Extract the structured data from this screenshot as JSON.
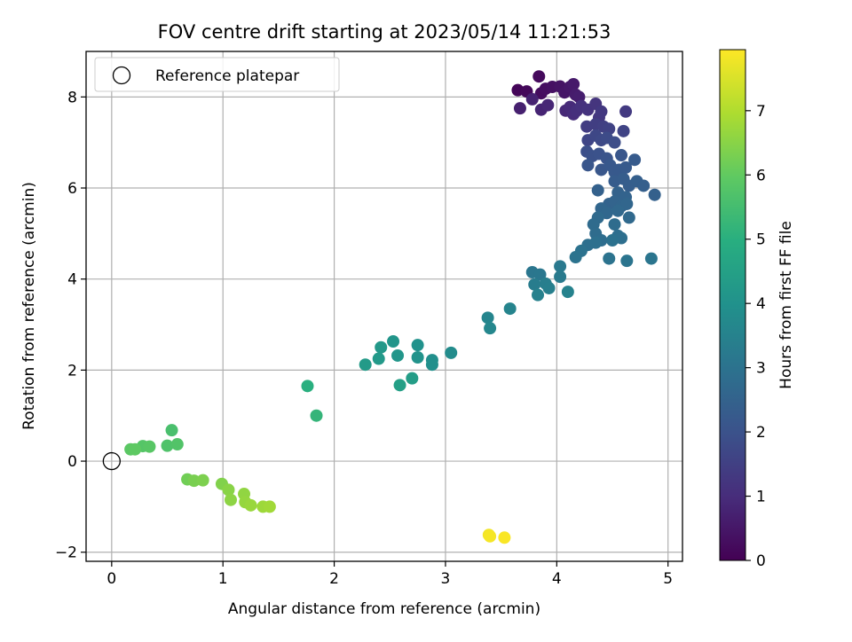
{
  "chart_data": {
    "type": "scatter",
    "title": "FOV centre drift starting at 2023/05/14 11:21:53",
    "xlabel": "Angular distance from reference (arcmin)",
    "ylabel": "Rotation from reference (arcmin)",
    "xlim": [
      -0.23,
      5.13
    ],
    "ylim": [
      -2.2,
      9.0
    ],
    "xticks": [
      0,
      1,
      2,
      3,
      4,
      5
    ],
    "yticks": [
      -2,
      0,
      2,
      4,
      6,
      8
    ],
    "xtick_labels": [
      "0",
      "1",
      "2",
      "3",
      "4",
      "5"
    ],
    "ytick_labels": [
      "−2",
      "0",
      "2",
      "4",
      "6",
      "8"
    ],
    "grid": true,
    "legend": {
      "position": "top-left",
      "entries": [
        "Reference platepar"
      ]
    },
    "reference_point": {
      "x": 0,
      "y": 0
    },
    "colorbar": {
      "label": "Hours from first FF file",
      "range": [
        0,
        7.95
      ],
      "ticks": [
        0,
        1,
        2,
        3,
        4,
        5,
        6,
        7
      ],
      "tick_labels": [
        "0",
        "1",
        "2",
        "3",
        "4",
        "5",
        "6",
        "7"
      ],
      "colormap": "viridis"
    },
    "points": [
      {
        "x": 3.65,
        "y": 8.15,
        "t": 0.1
      },
      {
        "x": 3.73,
        "y": 8.12,
        "t": 0.15
      },
      {
        "x": 3.84,
        "y": 8.45,
        "t": 0.2
      },
      {
        "x": 3.86,
        "y": 8.08,
        "t": 0.25
      },
      {
        "x": 3.9,
        "y": 8.18,
        "t": 0.3
      },
      {
        "x": 3.96,
        "y": 8.22,
        "t": 0.35
      },
      {
        "x": 4.03,
        "y": 8.23,
        "t": 0.4
      },
      {
        "x": 4.07,
        "y": 8.1,
        "t": 0.45
      },
      {
        "x": 4.12,
        "y": 8.22,
        "t": 0.5
      },
      {
        "x": 4.15,
        "y": 8.28,
        "t": 0.55
      },
      {
        "x": 4.17,
        "y": 8.05,
        "t": 0.6
      },
      {
        "x": 4.2,
        "y": 8.0,
        "t": 0.65
      },
      {
        "x": 3.67,
        "y": 7.75,
        "t": 0.7
      },
      {
        "x": 3.78,
        "y": 7.95,
        "t": 0.75
      },
      {
        "x": 3.86,
        "y": 7.72,
        "t": 0.8
      },
      {
        "x": 3.92,
        "y": 7.82,
        "t": 0.85
      },
      {
        "x": 4.08,
        "y": 7.7,
        "t": 0.9
      },
      {
        "x": 4.12,
        "y": 7.78,
        "t": 0.95
      },
      {
        "x": 4.15,
        "y": 7.62,
        "t": 1.0
      },
      {
        "x": 4.18,
        "y": 7.7,
        "t": 1.05
      },
      {
        "x": 4.22,
        "y": 7.8,
        "t": 1.1
      },
      {
        "x": 4.28,
        "y": 7.72,
        "t": 1.15
      },
      {
        "x": 4.35,
        "y": 7.85,
        "t": 1.2
      },
      {
        "x": 4.38,
        "y": 7.55,
        "t": 1.25
      },
      {
        "x": 4.4,
        "y": 7.68,
        "t": 1.3
      },
      {
        "x": 4.62,
        "y": 7.68,
        "t": 1.35
      },
      {
        "x": 4.27,
        "y": 7.35,
        "t": 1.4
      },
      {
        "x": 4.35,
        "y": 7.4,
        "t": 1.45
      },
      {
        "x": 4.42,
        "y": 7.35,
        "t": 1.5
      },
      {
        "x": 4.47,
        "y": 7.3,
        "t": 1.55
      },
      {
        "x": 4.6,
        "y": 7.25,
        "t": 1.6
      },
      {
        "x": 4.28,
        "y": 7.05,
        "t": 1.65
      },
      {
        "x": 4.35,
        "y": 7.15,
        "t": 1.7
      },
      {
        "x": 4.4,
        "y": 7.05,
        "t": 1.75
      },
      {
        "x": 4.45,
        "y": 7.1,
        "t": 1.8
      },
      {
        "x": 4.52,
        "y": 7.0,
        "t": 1.85
      },
      {
        "x": 4.27,
        "y": 6.8,
        "t": 1.9
      },
      {
        "x": 4.32,
        "y": 6.7,
        "t": 1.95
      },
      {
        "x": 4.38,
        "y": 6.75,
        "t": 2.0
      },
      {
        "x": 4.45,
        "y": 6.65,
        "t": 2.05
      },
      {
        "x": 4.58,
        "y": 6.72,
        "t": 2.1
      },
      {
        "x": 4.28,
        "y": 6.5,
        "t": 2.12
      },
      {
        "x": 4.4,
        "y": 6.4,
        "t": 2.15
      },
      {
        "x": 4.48,
        "y": 6.5,
        "t": 2.18
      },
      {
        "x": 4.52,
        "y": 6.35,
        "t": 2.2
      },
      {
        "x": 4.56,
        "y": 6.4,
        "t": 2.22
      },
      {
        "x": 4.62,
        "y": 6.45,
        "t": 2.25
      },
      {
        "x": 4.7,
        "y": 6.62,
        "t": 2.28
      },
      {
        "x": 4.52,
        "y": 6.15,
        "t": 2.3
      },
      {
        "x": 4.6,
        "y": 6.2,
        "t": 2.32
      },
      {
        "x": 4.65,
        "y": 6.05,
        "t": 2.35
      },
      {
        "x": 4.72,
        "y": 6.15,
        "t": 2.38
      },
      {
        "x": 4.78,
        "y": 6.05,
        "t": 2.4
      },
      {
        "x": 4.88,
        "y": 5.85,
        "t": 2.42
      },
      {
        "x": 4.37,
        "y": 5.95,
        "t": 2.45
      },
      {
        "x": 4.55,
        "y": 5.9,
        "t": 2.48
      },
      {
        "x": 4.62,
        "y": 5.8,
        "t": 2.5
      },
      {
        "x": 4.47,
        "y": 5.65,
        "t": 2.52
      },
      {
        "x": 4.52,
        "y": 5.7,
        "t": 2.55
      },
      {
        "x": 4.58,
        "y": 5.6,
        "t": 2.58
      },
      {
        "x": 4.63,
        "y": 5.65,
        "t": 2.6
      },
      {
        "x": 4.4,
        "y": 5.55,
        "t": 2.62
      },
      {
        "x": 4.45,
        "y": 5.45,
        "t": 2.65
      },
      {
        "x": 4.55,
        "y": 5.5,
        "t": 2.68
      },
      {
        "x": 4.65,
        "y": 5.35,
        "t": 2.7
      },
      {
        "x": 4.37,
        "y": 5.35,
        "t": 2.72
      },
      {
        "x": 4.33,
        "y": 5.2,
        "t": 2.75
      },
      {
        "x": 4.52,
        "y": 5.2,
        "t": 2.78
      },
      {
        "x": 4.35,
        "y": 5.0,
        "t": 2.8
      },
      {
        "x": 4.4,
        "y": 4.85,
        "t": 2.82
      },
      {
        "x": 4.55,
        "y": 4.95,
        "t": 2.85
      },
      {
        "x": 4.58,
        "y": 4.9,
        "t": 2.88
      },
      {
        "x": 4.28,
        "y": 4.75,
        "t": 2.9
      },
      {
        "x": 4.35,
        "y": 4.8,
        "t": 2.92
      },
      {
        "x": 4.5,
        "y": 4.85,
        "t": 2.95
      },
      {
        "x": 4.22,
        "y": 4.62,
        "t": 2.98
      },
      {
        "x": 4.17,
        "y": 4.48,
        "t": 3.0
      },
      {
        "x": 4.47,
        "y": 4.45,
        "t": 3.02
      },
      {
        "x": 4.63,
        "y": 4.4,
        "t": 3.05
      },
      {
        "x": 4.85,
        "y": 4.45,
        "t": 3.08
      },
      {
        "x": 3.78,
        "y": 4.15,
        "t": 3.1
      },
      {
        "x": 3.85,
        "y": 4.1,
        "t": 3.15
      },
      {
        "x": 4.03,
        "y": 4.28,
        "t": 3.2
      },
      {
        "x": 4.03,
        "y": 4.05,
        "t": 3.25
      },
      {
        "x": 3.8,
        "y": 3.88,
        "t": 3.3
      },
      {
        "x": 3.9,
        "y": 3.9,
        "t": 3.35
      },
      {
        "x": 3.93,
        "y": 3.8,
        "t": 3.4
      },
      {
        "x": 3.83,
        "y": 3.65,
        "t": 3.45
      },
      {
        "x": 4.1,
        "y": 3.72,
        "t": 3.5
      },
      {
        "x": 3.58,
        "y": 3.35,
        "t": 3.55
      },
      {
        "x": 3.38,
        "y": 3.15,
        "t": 3.6
      },
      {
        "x": 3.4,
        "y": 2.92,
        "t": 3.65
      },
      {
        "x": 3.05,
        "y": 2.38,
        "t": 3.8
      },
      {
        "x": 2.88,
        "y": 2.22,
        "t": 3.9
      },
      {
        "x": 2.88,
        "y": 2.12,
        "t": 3.95
      },
      {
        "x": 2.75,
        "y": 2.55,
        "t": 4.0
      },
      {
        "x": 2.75,
        "y": 2.28,
        "t": 4.05
      },
      {
        "x": 2.53,
        "y": 2.63,
        "t": 4.1
      },
      {
        "x": 2.57,
        "y": 2.32,
        "t": 4.15
      },
      {
        "x": 2.42,
        "y": 2.5,
        "t": 4.2
      },
      {
        "x": 2.4,
        "y": 2.25,
        "t": 4.25
      },
      {
        "x": 2.28,
        "y": 2.12,
        "t": 4.3
      },
      {
        "x": 2.7,
        "y": 1.82,
        "t": 4.4
      },
      {
        "x": 2.59,
        "y": 1.67,
        "t": 4.45
      },
      {
        "x": 1.76,
        "y": 1.65,
        "t": 5.0
      },
      {
        "x": 1.84,
        "y": 1.0,
        "t": 5.2
      },
      {
        "x": 0.54,
        "y": 0.68,
        "t": 5.6
      },
      {
        "x": 0.5,
        "y": 0.34,
        "t": 5.7
      },
      {
        "x": 0.59,
        "y": 0.37,
        "t": 5.75
      },
      {
        "x": 0.28,
        "y": 0.33,
        "t": 5.8
      },
      {
        "x": 0.34,
        "y": 0.32,
        "t": 5.85
      },
      {
        "x": 0.17,
        "y": 0.26,
        "t": 5.9
      },
      {
        "x": 0.21,
        "y": 0.26,
        "t": 5.95
      },
      {
        "x": 0.68,
        "y": -0.4,
        "t": 6.2
      },
      {
        "x": 0.74,
        "y": -0.43,
        "t": 6.3
      },
      {
        "x": 0.82,
        "y": -0.42,
        "t": 6.35
      },
      {
        "x": 0.99,
        "y": -0.5,
        "t": 6.4
      },
      {
        "x": 1.05,
        "y": -0.63,
        "t": 6.5
      },
      {
        "x": 1.07,
        "y": -0.85,
        "t": 6.55
      },
      {
        "x": 1.19,
        "y": -0.72,
        "t": 6.6
      },
      {
        "x": 1.2,
        "y": -0.9,
        "t": 6.65
      },
      {
        "x": 1.25,
        "y": -0.97,
        "t": 6.7
      },
      {
        "x": 1.36,
        "y": -1.0,
        "t": 6.75
      },
      {
        "x": 1.42,
        "y": -1.0,
        "t": 6.8
      },
      {
        "x": 3.39,
        "y": -1.62,
        "t": 7.8
      },
      {
        "x": 3.4,
        "y": -1.65,
        "t": 7.85
      },
      {
        "x": 3.53,
        "y": -1.68,
        "t": 7.9
      }
    ]
  }
}
